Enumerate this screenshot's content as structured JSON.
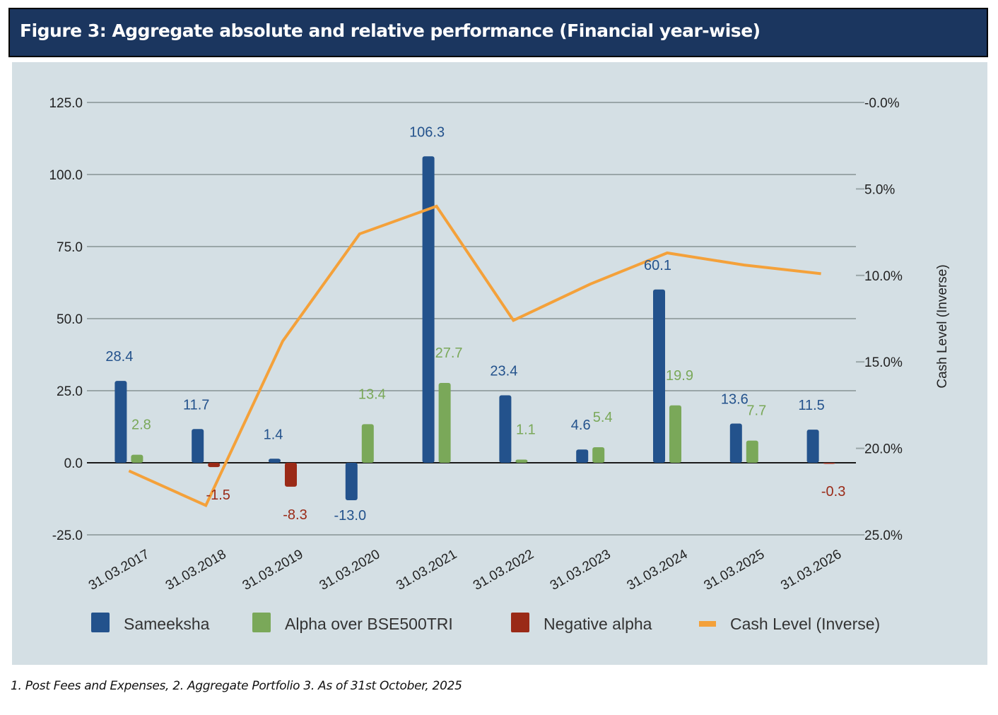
{
  "header": {
    "title": "Figure 3:  Aggregate absolute and relative performance (Financial year-wise)"
  },
  "footnote": "1. Post Fees and Expenses, 2. Aggregate Portfolio  3. As of 31st October, 2025",
  "colors": {
    "sameeksha": "#23528c",
    "alpha": "#7aa859",
    "negative_alpha": "#9a2a17",
    "cash": "#f4a13a",
    "background": "#d4dfe4",
    "title_bar": "#1b365f"
  },
  "chart_data": {
    "type": "bar",
    "title": "Aggregate absolute and relative performance (Financial year-wise)",
    "categories": [
      "31.03.2017",
      "31.03.2018",
      "31.03.2019",
      "31.03.2020",
      "31.03.2021",
      "31.03.2022",
      "31.03.2023",
      "31.03.2024",
      "31.03.2025",
      "31.03.2026"
    ],
    "ylim": [
      -25,
      125
    ],
    "yticks": [
      "125.0",
      "100.0",
      "75.0",
      "50.0",
      "25.0",
      "0.0",
      "-25.0"
    ],
    "ytick_values": [
      125,
      100,
      75,
      50,
      25,
      0,
      -25
    ],
    "y2label": "Cash Level (Inverse)",
    "y2lim": [
      0,
      25
    ],
    "y2_inverted": true,
    "y2ticks": [
      "-0.0%",
      "5.0%",
      "10.0%",
      "15.0%",
      "20.0%",
      "25.0%"
    ],
    "y2tick_values": [
      0,
      5,
      10,
      15,
      20,
      25
    ],
    "grid": true,
    "legend_position": "bottom",
    "series": [
      {
        "name": "Sameeksha",
        "type": "bar",
        "values": [
          28.4,
          11.7,
          1.4,
          -13.0,
          106.3,
          23.4,
          4.6,
          60.1,
          13.6,
          11.5
        ],
        "labels": [
          "28.4",
          "11.7",
          "1.4",
          "-13.0",
          "106.3",
          "23.4",
          "4.6",
          "60.1",
          "13.6",
          "11.5"
        ]
      },
      {
        "name": "Alpha over BSE500TRI",
        "type": "bar",
        "values": [
          2.8,
          null,
          null,
          13.4,
          27.7,
          1.1,
          5.4,
          19.9,
          7.7,
          null
        ],
        "labels": [
          "2.8",
          null,
          null,
          "13.4",
          "27.7",
          "1.1",
          "5.4",
          "19.9",
          "7.7",
          null
        ]
      },
      {
        "name": "Negative alpha",
        "type": "bar",
        "values": [
          null,
          -1.5,
          -8.3,
          null,
          null,
          null,
          null,
          null,
          null,
          -0.3
        ],
        "labels": [
          null,
          "-1.5",
          "-8.3",
          null,
          null,
          null,
          null,
          null,
          null,
          "-0.3"
        ]
      },
      {
        "name": "Cash Level (Inverse)",
        "type": "line",
        "axis": "y2",
        "values": [
          21.3,
          23.3,
          13.8,
          7.6,
          6.0,
          12.6,
          10.5,
          8.7,
          9.4,
          9.9
        ]
      }
    ]
  }
}
